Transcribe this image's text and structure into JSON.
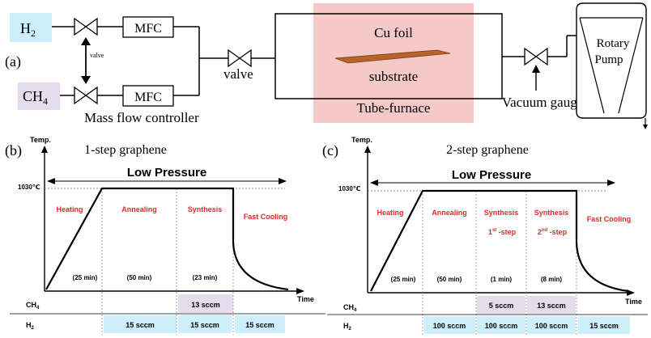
{
  "colors": {
    "h2_box": "#cdeefb",
    "ch4_box": "#e6dcec",
    "furnace": "#f6c9c9",
    "cu_foil": "#b5652a",
    "phase_red": "#e8262a",
    "flow_blue": "#cdeefb",
    "flow_purple": "#e6dcec"
  },
  "schematic": {
    "panel_label": "(a)",
    "h2_label": {
      "main": "H",
      "sub": "2"
    },
    "ch4_label": {
      "main": "CH",
      "sub": "4"
    },
    "mfc_label": "MFC",
    "small_valve_label": "valve",
    "main_valve_label": "valve",
    "mass_flow_label": "Mass flow controller",
    "cu_foil_label": "Cu foil",
    "substrate_label": "substrate",
    "furnace_label": "Tube-furnace",
    "vacuum_label": "Vacuum gauge",
    "pump_label_1": "Rotary",
    "pump_label_2": "Pump"
  },
  "chart_b": {
    "panel_label": "(b)",
    "title": "1-step graphene",
    "y_label": "Temp.",
    "x_label": "Time",
    "temp_label": "1030℃",
    "pressure_label": "Low Pressure",
    "phases": [
      {
        "name": "Heating",
        "duration": "(25 min)"
      },
      {
        "name": "Annealing",
        "duration": "(50 min)"
      },
      {
        "name": "Synthesis",
        "duration": "(23 min)"
      },
      {
        "name": "Fast Cooling",
        "duration": ""
      }
    ],
    "ch4_row": {
      "label_main": "CH",
      "label_sub": "4",
      "values": [
        "",
        "",
        "13 sccm",
        ""
      ]
    },
    "h2_row": {
      "label_main": "H",
      "label_sub": "2",
      "values": [
        "",
        "15 sccm",
        "15 sccm",
        "15 sccm"
      ]
    }
  },
  "chart_c": {
    "panel_label": "(c)",
    "title": "2-step graphene",
    "y_label": "Temp.",
    "x_label": "Time",
    "temp_label": "1030℃",
    "pressure_label": "Low Pressure",
    "phases": [
      {
        "name": "Heating",
        "sub1": "",
        "sup": "",
        "sub2": "",
        "duration": "(25 min)"
      },
      {
        "name": "Annealing",
        "sub1": "",
        "sup": "",
        "sub2": "",
        "duration": "(50 min)"
      },
      {
        "name": "Synthesis",
        "sub1": "1",
        "sup": "st",
        "sub2": " -step",
        "duration": "(1 min)"
      },
      {
        "name": "Synthesis",
        "sub1": "2",
        "sup": "nd",
        "sub2": " -step",
        "duration": "(8 min)"
      },
      {
        "name": "Fast Cooling",
        "sub1": "",
        "sup": "",
        "sub2": "",
        "duration": ""
      }
    ],
    "ch4_row": {
      "label_main": "CH",
      "label_sub": "4",
      "values": [
        "",
        "",
        "5 sccm",
        "13 sccm",
        ""
      ]
    },
    "h2_row": {
      "label_main": "H",
      "label_sub": "2",
      "values": [
        "",
        "100 sccm",
        "100 sccm",
        "100 sccm",
        "15 sccm"
      ]
    }
  }
}
